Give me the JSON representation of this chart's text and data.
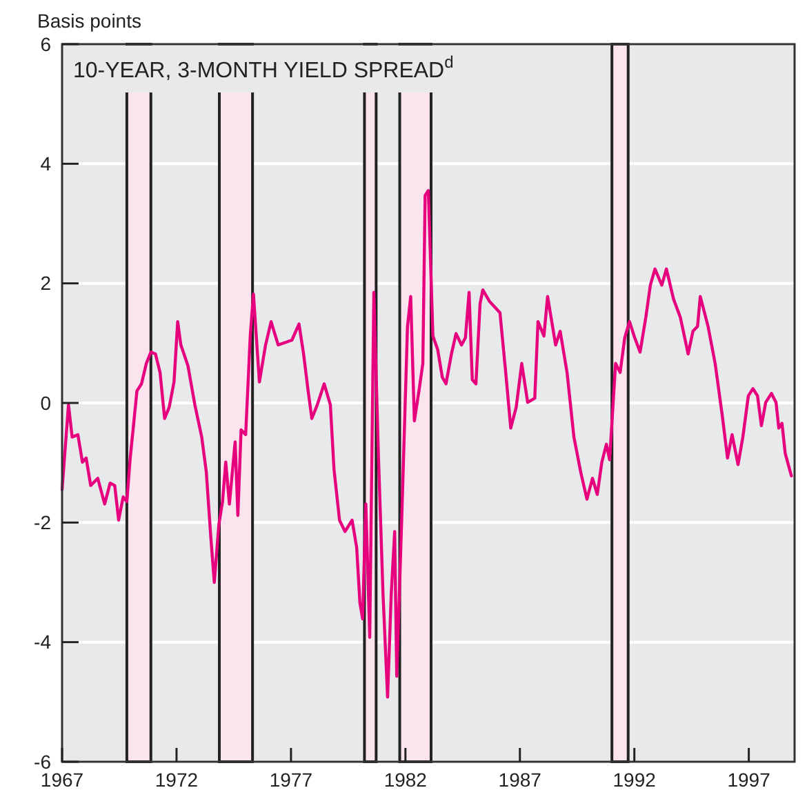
{
  "chart_data": {
    "type": "line",
    "title": "10-YEAR, 3-MONTH YIELD SPREAD$^{d}$",
    "ylabel": "Basis points",
    "xlim": [
      1967,
      1999
    ],
    "xticks": [
      1967,
      1972,
      1977,
      1982,
      1987,
      1992,
      1997
    ],
    "ylim": [
      -6,
      6
    ],
    "yticks": [
      -6,
      -4,
      -2,
      0,
      2,
      4,
      6
    ],
    "grid": "y",
    "bands": [
      {
        "axis": "x",
        "from": 1969.83,
        "to": 1970.88,
        "color": "#fce4ef"
      },
      {
        "axis": "x",
        "from": 1973.87,
        "to": 1975.32,
        "color": "#fce4ef"
      },
      {
        "axis": "x",
        "from": 1980.21,
        "to": 1980.72,
        "color": "#fce4ef"
      },
      {
        "axis": "x",
        "from": 1981.75,
        "to": 1983.12,
        "color": "#fce4ef"
      },
      {
        "axis": "x",
        "from": 1991.02,
        "to": 1991.73,
        "color": "#fce4ef"
      }
    ],
    "series": [
      {
        "color": "#e6007e",
        "line_style": "solid",
        "x": [
          1967.0,
          1967.28,
          1967.44,
          1967.69,
          1967.89,
          1968.05,
          1968.25,
          1968.56,
          1968.86,
          1969.1,
          1969.3,
          1969.47,
          1969.67,
          1969.83,
          1969.97,
          1970.27,
          1970.47,
          1970.68,
          1970.88,
          1971.08,
          1971.28,
          1971.48,
          1971.68,
          1971.89,
          1972.05,
          1972.19,
          1972.5,
          1972.8,
          1973.1,
          1973.3,
          1973.5,
          1973.65,
          1973.85,
          1974.01,
          1974.15,
          1974.31,
          1974.56,
          1974.68,
          1974.82,
          1975.02,
          1975.22,
          1975.36,
          1975.62,
          1975.89,
          1976.13,
          1976.44,
          1976.74,
          1977.04,
          1977.35,
          1977.55,
          1977.75,
          1977.91,
          1978.15,
          1978.45,
          1978.72,
          1978.88,
          1979.12,
          1979.36,
          1979.67,
          1979.87,
          1980.01,
          1980.13,
          1980.27,
          1980.44,
          1980.62,
          1980.82,
          1981.02,
          1981.22,
          1981.38,
          1981.53,
          1981.62,
          1981.83,
          1982.09,
          1982.23,
          1982.39,
          1982.59,
          1982.76,
          1982.86,
          1983.0,
          1983.2,
          1983.41,
          1983.61,
          1983.77,
          1984.01,
          1984.21,
          1984.45,
          1984.62,
          1984.78,
          1984.92,
          1985.08,
          1985.26,
          1985.38,
          1985.67,
          1986.13,
          1986.39,
          1986.6,
          1986.84,
          1987.08,
          1987.34,
          1987.65,
          1987.79,
          1988.05,
          1988.21,
          1988.56,
          1988.76,
          1989.06,
          1989.36,
          1989.67,
          1989.93,
          1990.17,
          1990.38,
          1990.58,
          1990.78,
          1990.92,
          1991.18,
          1991.38,
          1991.58,
          1991.79,
          1991.99,
          1992.25,
          1992.5,
          1992.7,
          1992.9,
          1993.2,
          1993.4,
          1993.71,
          1994.01,
          1994.35,
          1994.56,
          1994.76,
          1994.88,
          1995.22,
          1995.53,
          1995.83,
          1996.07,
          1996.27,
          1996.53,
          1996.74,
          1996.98,
          1997.18,
          1997.38,
          1997.55,
          1997.74,
          1997.99,
          1998.19,
          1998.31,
          1998.45,
          1998.59,
          1998.86
        ],
        "values": [
          -1.45,
          -0.03,
          -0.57,
          -0.53,
          -0.99,
          -0.92,
          -1.38,
          -1.26,
          -1.69,
          -1.34,
          -1.38,
          -1.96,
          -1.57,
          -1.65,
          -0.95,
          0.2,
          0.32,
          0.66,
          0.85,
          0.82,
          0.51,
          -0.26,
          -0.07,
          0.35,
          1.36,
          0.97,
          0.62,
          -0.03,
          -0.57,
          -1.15,
          -2.26,
          -3.0,
          -2.03,
          -1.65,
          -0.99,
          -1.69,
          -0.65,
          -1.88,
          -0.45,
          -0.53,
          1.12,
          1.82,
          0.35,
          0.97,
          1.36,
          0.97,
          1.01,
          1.05,
          1.32,
          0.82,
          0.2,
          -0.26,
          -0.03,
          0.32,
          -0.03,
          -1.11,
          -1.96,
          -2.15,
          -1.96,
          -2.42,
          -3.34,
          -3.61,
          -1.69,
          -3.92,
          1.85,
          -0.88,
          -3.19,
          -4.92,
          -3.19,
          -2.15,
          -4.57,
          -2.03,
          1.28,
          1.78,
          -0.3,
          0.2,
          0.66,
          3.47,
          3.55,
          1.12,
          0.89,
          0.43,
          0.32,
          0.82,
          1.16,
          0.97,
          1.09,
          1.85,
          0.39,
          0.32,
          1.66,
          1.89,
          1.7,
          1.51,
          0.47,
          -0.42,
          -0.07,
          0.66,
          0.01,
          0.08,
          1.36,
          1.12,
          1.78,
          0.97,
          1.2,
          0.51,
          -0.57,
          -1.18,
          -1.61,
          -1.26,
          -1.53,
          -0.99,
          -0.69,
          -0.95,
          0.66,
          0.51,
          1.09,
          1.36,
          1.12,
          0.85,
          1.43,
          1.97,
          2.24,
          1.97,
          2.24,
          1.74,
          1.43,
          0.82,
          1.2,
          1.28,
          1.78,
          1.28,
          0.66,
          -0.18,
          -0.92,
          -0.53,
          -1.03,
          -0.57,
          0.12,
          0.24,
          0.12,
          -0.38,
          0.01,
          0.16,
          0.01,
          -0.42,
          -0.34,
          -0.84,
          -1.22
        ]
      }
    ]
  }
}
